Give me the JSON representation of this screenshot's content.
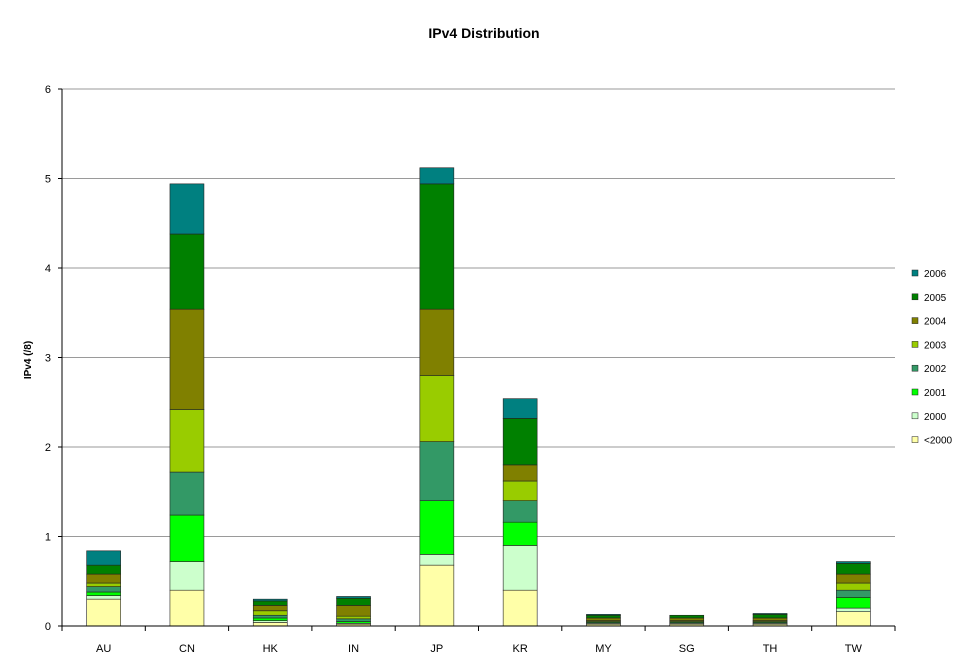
{
  "chart_data": {
    "type": "bar",
    "stacked": true,
    "title": "IPv4 Distribution",
    "xlabel": "",
    "ylabel": "IPv4 (/8)",
    "ylim": [
      0,
      6
    ],
    "yticks": [
      "0",
      "1",
      "2",
      "3",
      "4",
      "5",
      "6"
    ],
    "grid": true,
    "legend_position": "right",
    "categories": [
      "AU",
      "CN",
      "HK",
      "IN",
      "JP",
      "KR",
      "MY",
      "SG",
      "TH",
      "TW"
    ],
    "series": [
      {
        "name": "<2000",
        "color": "#FFFFA8",
        "values": [
          0.3,
          0.4,
          0.04,
          0.02,
          0.68,
          0.4,
          0.02,
          0.02,
          0.02,
          0.16
        ]
      },
      {
        "name": "2000",
        "color": "#CCFFCC",
        "values": [
          0.04,
          0.32,
          0.02,
          0.01,
          0.12,
          0.5,
          0.01,
          0.01,
          0.01,
          0.04
        ]
      },
      {
        "name": "2001",
        "color": "#00FF00",
        "values": [
          0.04,
          0.52,
          0.03,
          0.02,
          0.6,
          0.26,
          0.01,
          0.01,
          0.01,
          0.12
        ]
      },
      {
        "name": "2002",
        "color": "#339966",
        "values": [
          0.06,
          0.48,
          0.03,
          0.03,
          0.66,
          0.24,
          0.01,
          0.01,
          0.01,
          0.08
        ]
      },
      {
        "name": "2003",
        "color": "#99CC00",
        "values": [
          0.04,
          0.7,
          0.05,
          0.03,
          0.74,
          0.22,
          0.01,
          0.01,
          0.01,
          0.08
        ]
      },
      {
        "name": "2004",
        "color": "#808000",
        "values": [
          0.1,
          1.12,
          0.06,
          0.12,
          0.74,
          0.18,
          0.03,
          0.03,
          0.03,
          0.1
        ]
      },
      {
        "name": "2005",
        "color": "#008000",
        "values": [
          0.1,
          0.84,
          0.05,
          0.08,
          1.4,
          0.52,
          0.03,
          0.03,
          0.04,
          0.12
        ]
      },
      {
        "name": "2006",
        "color": "#008080",
        "values": [
          0.16,
          0.56,
          0.02,
          0.02,
          0.18,
          0.22,
          0.01,
          0.0,
          0.01,
          0.02
        ]
      }
    ]
  }
}
